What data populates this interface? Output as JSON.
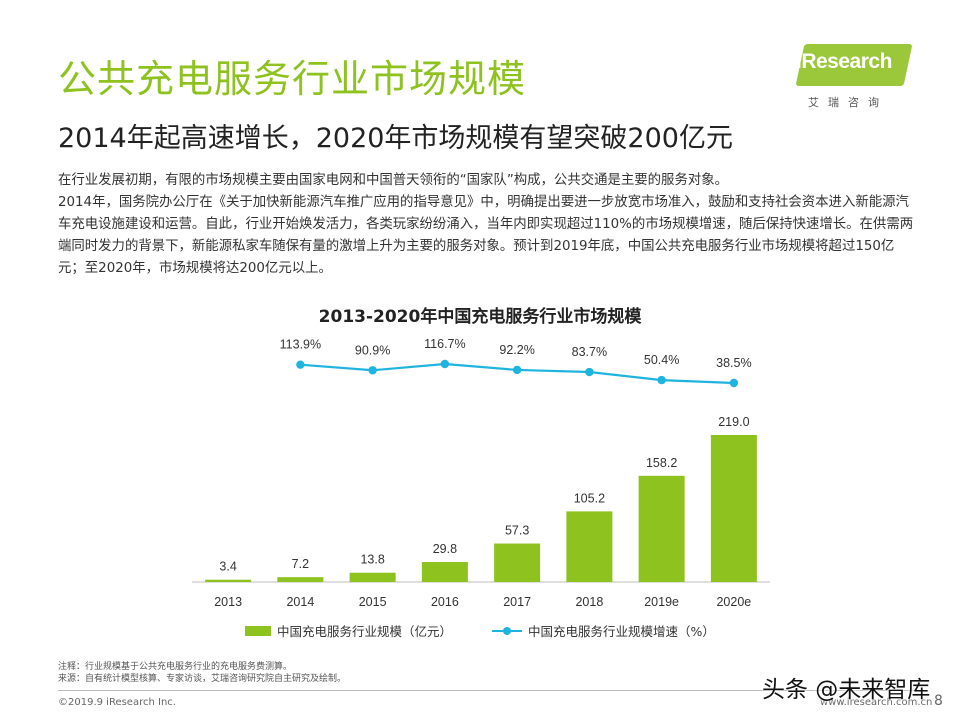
{
  "header": {
    "title": "公共充电服务行业市场规模",
    "subtitle": "2014年起高速增长，2020年市场规模有望突破200亿元",
    "logo_text": "iResearch",
    "logo_sub": "艾瑞咨询"
  },
  "body": {
    "paragraph_1": "在行业发展初期，有限的市场规模主要由国家电网和中国普天领衔的“国家队”构成，公共交通是主要的服务对象。",
    "paragraph_2": "2014年，国务院办公厅在《关于加快新能源汽车推广应用的指导意见》中，明确提出要进一步放宽市场准入，鼓励和支持社会资本进入新能源汽车充电设施建设和运营。自此，行业开始焕发活力，各类玩家纷纷涌入，当年内即实现超过110%的市场规模增速，随后保持快速增长。在供需两端同时发力的背景下，新能源私家车随保有量的激增上升为主要的服务对象。预计到2019年底，中国公共充电服务行业市场规模将超过150亿元；至2020年，市场规模将达200亿元以上。"
  },
  "chart_data": {
    "type": "bar",
    "title": "2013-2020年中国充电服务行业市场规模",
    "categories": [
      "2013",
      "2014",
      "2015",
      "2016",
      "2017",
      "2018",
      "2019e",
      "2020e"
    ],
    "series": [
      {
        "name": "中国充电服务行业规模（亿元）",
        "type": "bar",
        "values": [
          3.4,
          7.2,
          13.8,
          29.8,
          57.3,
          105.2,
          158.2,
          219.0
        ],
        "labels": [
          "3.4",
          "7.2",
          "13.8",
          "29.8",
          "57.3",
          "105.2",
          "158.2",
          "219.0"
        ],
        "color": "#8dc21f"
      },
      {
        "name": "中国充电服务行业规模增速（%）",
        "type": "line",
        "x": [
          "2014",
          "2015",
          "2016",
          "2017",
          "2018",
          "2019e",
          "2020e"
        ],
        "values": [
          113.9,
          90.9,
          116.7,
          92.2,
          83.7,
          50.4,
          38.5
        ],
        "labels": [
          "113.9%",
          "90.9%",
          "116.7%",
          "92.2%",
          "83.7%",
          "50.4%",
          "38.5%"
        ],
        "color": "#1fb4e0"
      }
    ],
    "ylim_bar": [
      0,
      300
    ],
    "grid": false,
    "legend": "bottom"
  },
  "notes": {
    "note": "注释：行业规模基于公共充电服务行业的充电服务费测算。",
    "source": "来源：自有统计模型核算、专家访谈，艾瑞咨询研究院自主研究及绘制。"
  },
  "footer": {
    "copyright": "©2019.9 iResearch Inc.",
    "website": "www.iresearch.com.cn",
    "page": "8",
    "watermark": "头条 @未来智库"
  }
}
